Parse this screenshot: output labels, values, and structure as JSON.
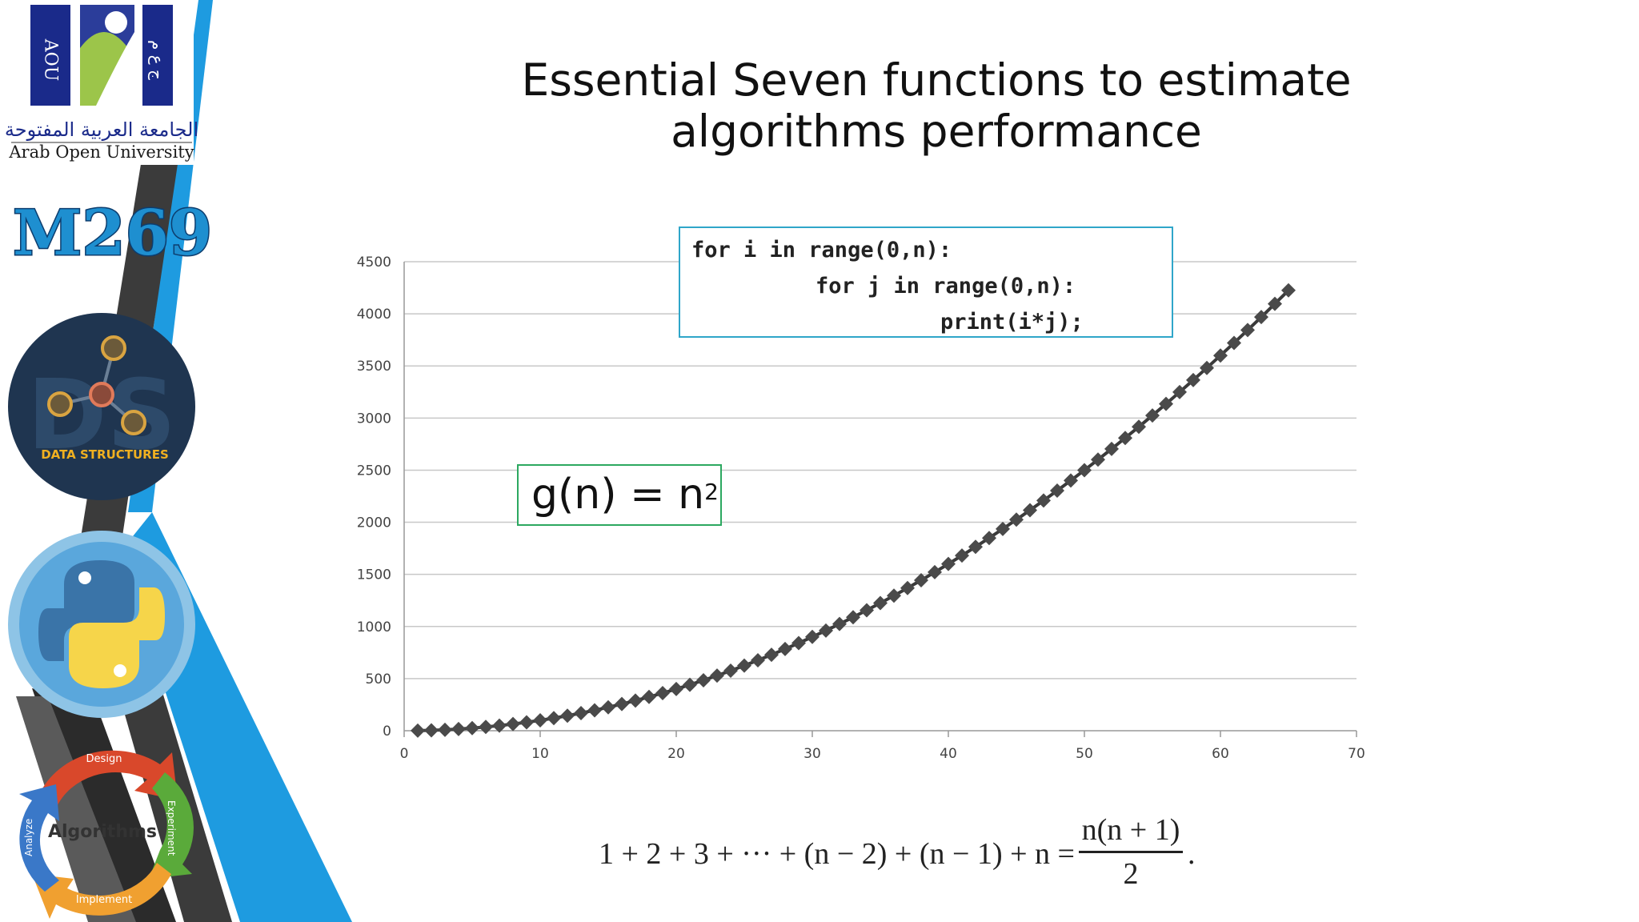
{
  "title": "Essential Seven functions to estimate algorithms performance",
  "sidebar": {
    "university_arabic": "الجامعة العربية المفتوحة",
    "university_english": "Arab Open University",
    "logo_letters_left": "AOU",
    "logo_letters_right": "ج ع م",
    "course_code": "M269",
    "badge_data_structures": "DATA STRUCTURES",
    "badge_ds_watermark": "DS",
    "cycle_center": "Algorithms",
    "cycle_top": "Design",
    "cycle_right": "Experiment",
    "cycle_bottom": "Implement",
    "cycle_left": "Analyze"
  },
  "code": {
    "line1": "for i in range(0,n):",
    "line2": "for j in range(0,n):",
    "line3": "print(i*j);"
  },
  "formula_label": {
    "base": "g(n) = n",
    "exponent": "2"
  },
  "sum_formula": {
    "left": "1 + 2 + 3 + ··· + (n − 2) + (n − 1) + n =",
    "numerator": "n(n + 1)",
    "denominator": "2",
    "trailing": "."
  },
  "chart_data": {
    "type": "scatter",
    "x": [
      1,
      2,
      3,
      4,
      5,
      6,
      7,
      8,
      9,
      10,
      11,
      12,
      13,
      14,
      15,
      16,
      17,
      18,
      19,
      20,
      21,
      22,
      23,
      24,
      25,
      26,
      27,
      28,
      29,
      30,
      31,
      32,
      33,
      34,
      35,
      36,
      37,
      38,
      39,
      40,
      41,
      42,
      43,
      44,
      45,
      46,
      47,
      48,
      49,
      50,
      51,
      52,
      53,
      54,
      55,
      56,
      57,
      58,
      59,
      60,
      61,
      62,
      63,
      64,
      65
    ],
    "y": [
      1,
      4,
      9,
      16,
      25,
      36,
      49,
      64,
      81,
      100,
      121,
      144,
      169,
      196,
      225,
      256,
      289,
      324,
      361,
      400,
      441,
      484,
      529,
      576,
      625,
      676,
      729,
      784,
      841,
      900,
      961,
      1024,
      1089,
      1156,
      1225,
      1296,
      1369,
      1444,
      1521,
      1600,
      1681,
      1764,
      1849,
      1936,
      2025,
      2116,
      2209,
      2304,
      2401,
      2500,
      2601,
      2704,
      2809,
      2916,
      3025,
      3136,
      3249,
      3364,
      3481,
      3600,
      3721,
      3844,
      3969,
      4096,
      4225
    ],
    "xlim": [
      0,
      70
    ],
    "ylim": [
      0,
      4500
    ],
    "xticks": [
      0,
      10,
      20,
      30,
      40,
      50,
      60,
      70
    ],
    "yticks": [
      0,
      500,
      1000,
      1500,
      2000,
      2500,
      3000,
      3500,
      4000,
      4500
    ],
    "grid": "horizontal",
    "marker": "diamond",
    "line_color": "#3a3a3a",
    "marker_color": "#4a4a4a",
    "title": "",
    "xlabel": "",
    "ylabel": ""
  },
  "colors": {
    "code_border": "#2fa6c9",
    "formula_border": "#2ca860",
    "sidebar_blue": "#1e9be0",
    "sidebar_dark": "#3b3b3b"
  }
}
